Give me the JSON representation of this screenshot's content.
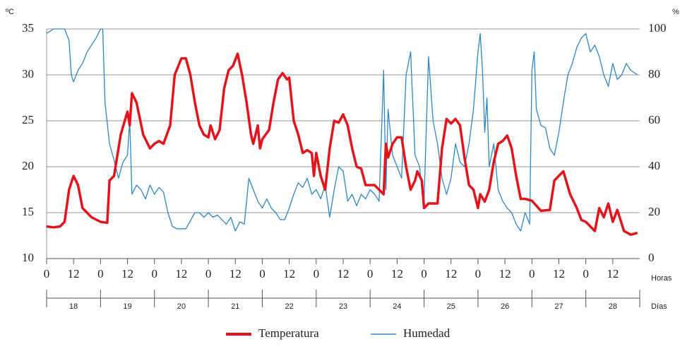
{
  "chart_data": {
    "type": "line",
    "y_label": "ºC",
    "y2_label": "%",
    "x_label": "Horas",
    "day_label": "Días",
    "xlim": [
      0,
      264
    ],
    "xticks": [
      0,
      12,
      {
        "value": 24,
        "label": "0"
      },
      {
        "value": 36,
        "label": "12"
      },
      {
        "value": 48,
        "label": "0"
      },
      {
        "value": 60,
        "label": "12"
      },
      {
        "value": 72,
        "label": "0"
      },
      {
        "value": 84,
        "label": "12"
      },
      {
        "value": 96,
        "label": "0"
      },
      {
        "value": 108,
        "label": "12"
      },
      {
        "value": 120,
        "label": "0"
      },
      {
        "value": 132,
        "label": "12"
      },
      {
        "value": 144,
        "label": "0"
      },
      {
        "value": 156,
        "label": "12"
      },
      {
        "value": 168,
        "label": "0"
      },
      {
        "value": 180,
        "label": "12"
      },
      {
        "value": 192,
        "label": "0"
      },
      {
        "value": 204,
        "label": "12"
      },
      {
        "value": 216,
        "label": "0"
      },
      {
        "value": 228,
        "label": "12"
      },
      {
        "value": 240,
        "label": "0"
      },
      {
        "value": 252,
        "label": "12"
      }
    ],
    "days": [
      "18",
      "19",
      "20",
      "21",
      "22",
      "23",
      "24",
      "25",
      "26",
      "27",
      "28"
    ],
    "ylim": [
      10,
      35
    ],
    "yticks": [
      10,
      15,
      20,
      25,
      30,
      35
    ],
    "y2lim": [
      0,
      100
    ],
    "y2ticks": [
      0,
      20,
      40,
      60,
      80,
      100
    ],
    "grid": true,
    "series": [
      {
        "name": "Temperatura",
        "color": "#e3141c",
        "x": [
          0,
          3,
          6,
          8,
          10,
          12,
          14,
          16,
          20,
          24,
          27,
          28,
          30,
          33,
          36,
          37,
          38,
          40,
          43,
          46,
          48,
          50,
          52,
          55,
          57,
          60,
          62,
          64,
          66,
          68,
          70,
          72,
          73,
          75,
          77,
          79,
          81,
          83,
          85,
          87,
          89,
          91,
          92,
          94,
          95,
          96,
          99,
          101,
          103,
          105,
          107,
          108,
          110,
          112,
          114,
          116,
          118,
          119,
          120,
          122,
          124,
          126,
          128,
          130,
          132,
          134,
          136,
          138,
          140,
          142,
          144,
          146,
          148,
          150,
          151,
          152,
          154,
          156,
          158,
          160,
          162,
          164,
          165,
          167,
          168,
          170,
          172,
          174,
          176,
          178,
          180,
          182,
          184,
          186,
          188,
          190,
          192,
          193,
          195,
          197,
          199,
          201,
          203,
          205,
          207,
          209,
          211,
          213,
          216,
          220,
          224,
          226,
          230,
          233,
          236,
          238,
          240,
          244,
          246,
          248,
          250,
          252,
          254,
          257,
          260,
          263
        ],
        "values": [
          13.5,
          13.4,
          13.5,
          14,
          17.5,
          19,
          18,
          15.5,
          14.5,
          14,
          13.9,
          18.5,
          19,
          23.5,
          26,
          24.5,
          28,
          27,
          23.5,
          22,
          22.5,
          22.8,
          22.5,
          24.5,
          30,
          31.8,
          31.8,
          30,
          27,
          24.5,
          23.5,
          23.2,
          24.5,
          23,
          24,
          28.5,
          30.5,
          31,
          32.3,
          30,
          27,
          23.5,
          22.5,
          24.5,
          22,
          23,
          24,
          27,
          29.5,
          30.2,
          29.5,
          29.7,
          25,
          23.5,
          21.5,
          21.8,
          21.5,
          19,
          21.5,
          19,
          17.5,
          22,
          25,
          24.8,
          25.7,
          24.5,
          22,
          20,
          19.8,
          18,
          18,
          18,
          17.5,
          17,
          22.5,
          21,
          22.5,
          23.2,
          23.2,
          20,
          17.5,
          18.5,
          19.5,
          18.5,
          15.5,
          16,
          16,
          16,
          22,
          25.2,
          24.7,
          25.2,
          24.5,
          21,
          18,
          17.5,
          15.5,
          17,
          16.2,
          17.5,
          20.5,
          22.5,
          22.8,
          23.4,
          22,
          19,
          16.5,
          16.5,
          16.3,
          15.2,
          15.3,
          18.5,
          19.5,
          17,
          15.5,
          14.2,
          14,
          13,
          15.5,
          14.5,
          16,
          14,
          15.3,
          13,
          12.6,
          12.8
        ]
      },
      {
        "name": "Humedad",
        "color": "#2f86c4",
        "axis": "y2",
        "x": [
          0,
          3,
          8,
          10,
          11,
          12,
          14,
          16,
          18,
          20,
          22,
          24,
          25,
          26,
          28,
          30,
          32,
          34,
          36,
          37,
          38,
          40,
          42,
          44,
          46,
          48,
          50,
          52,
          54,
          56,
          58,
          62,
          66,
          68,
          70,
          72,
          74,
          76,
          78,
          80,
          82,
          84,
          86,
          88,
          90,
          92,
          94,
          96,
          98,
          100,
          102,
          104,
          106,
          108,
          110,
          112,
          114,
          116,
          118,
          120,
          122,
          124,
          126,
          128,
          130,
          132,
          134,
          136,
          138,
          140,
          142,
          144,
          146,
          148,
          150,
          151,
          152,
          154,
          156,
          158,
          160,
          162,
          164,
          166,
          167,
          168,
          170,
          172,
          174,
          176,
          178,
          180,
          182,
          184,
          186,
          188,
          190,
          192,
          193,
          194,
          195,
          196,
          197,
          199,
          201,
          203,
          205,
          207,
          209,
          211,
          213,
          215,
          216,
          217,
          218,
          220,
          222,
          224,
          226,
          228,
          230,
          232,
          234,
          236,
          238,
          240,
          242,
          244,
          246,
          248,
          250,
          252,
          254,
          256,
          258,
          260,
          263
        ],
        "values": [
          98,
          100,
          100,
          95,
          80,
          77,
          82,
          85,
          90,
          93,
          96,
          100,
          100,
          68,
          50,
          43,
          35,
          42,
          45,
          60,
          28,
          32,
          30,
          26,
          32,
          28,
          31,
          29,
          20,
          14,
          13,
          13,
          20,
          20,
          18,
          20,
          18,
          19,
          17,
          15,
          18,
          12,
          16,
          15,
          35,
          30,
          25,
          22,
          26,
          22,
          20,
          17,
          17,
          22,
          28,
          33,
          31,
          35,
          28,
          30,
          26,
          32,
          18,
          30,
          40,
          38,
          25,
          28,
          23,
          28,
          26,
          30,
          28,
          25,
          82,
          30,
          65,
          45,
          40,
          35,
          80,
          90,
          45,
          40,
          30,
          25,
          88,
          60,
          50,
          35,
          28,
          35,
          50,
          42,
          40,
          50,
          65,
          90,
          98,
          82,
          55,
          70,
          40,
          50,
          30,
          25,
          22,
          20,
          15,
          12,
          20,
          15,
          82,
          90,
          65,
          58,
          57,
          48,
          45,
          55,
          68,
          80,
          85,
          92,
          96,
          98,
          90,
          93,
          88,
          80,
          75,
          85,
          78,
          80,
          85,
          82,
          80
        ]
      }
    ]
  }
}
